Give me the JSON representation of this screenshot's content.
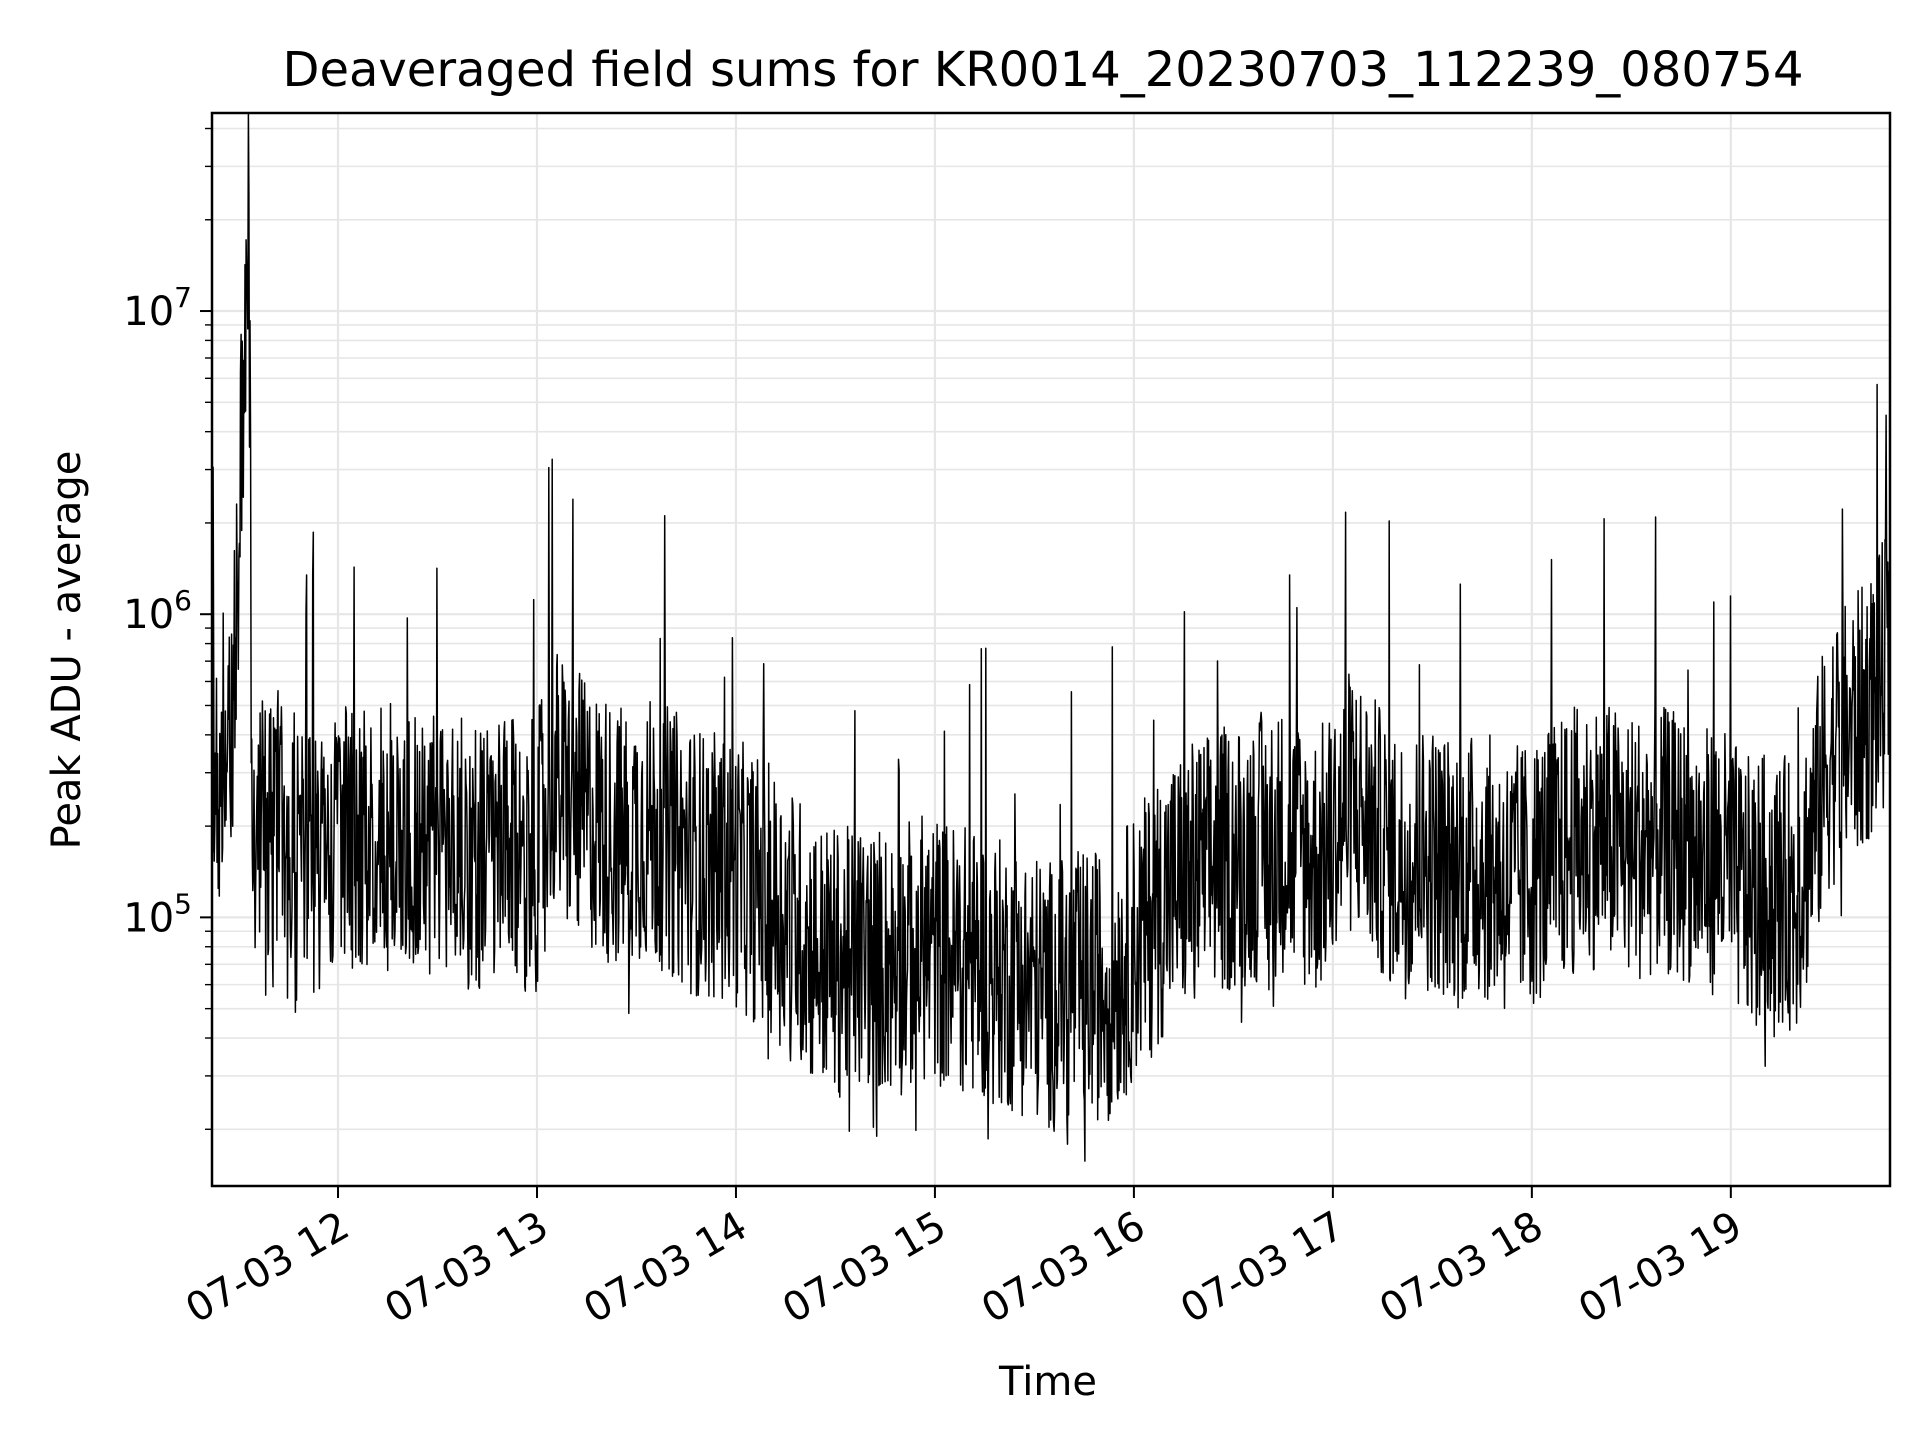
{
  "chart_data": {
    "type": "line",
    "title": "Deaveraged field sums for KR0014_20230703_112239_080754",
    "xlabel": "Time",
    "ylabel": "Peak ADU - average",
    "x_range": [
      "2023-07-03 11:22",
      "2023-07-03 19:48"
    ],
    "xlim": [
      "2023-07-03 11:22",
      "2023-07-03 19:48"
    ],
    "x_ticks": [
      {
        "date": "2023-07-03 12:00",
        "label": "07-03 12"
      },
      {
        "date": "2023-07-03 13:00",
        "label": "07-03 13"
      },
      {
        "date": "2023-07-03 14:00",
        "label": "07-03 14"
      },
      {
        "date": "2023-07-03 15:00",
        "label": "07-03 15"
      },
      {
        "date": "2023-07-03 16:00",
        "label": "07-03 16"
      },
      {
        "date": "2023-07-03 17:00",
        "label": "07-03 17"
      },
      {
        "date": "2023-07-03 18:00",
        "label": "07-03 18"
      },
      {
        "date": "2023-07-03 19:00",
        "label": "07-03 19"
      }
    ],
    "y_scale": "log",
    "ylim": [
      13000,
      45000000
    ],
    "y_ticks": [
      {
        "value": 100000,
        "base": "10",
        "exp": "5"
      },
      {
        "value": 1000000,
        "base": "10",
        "exp": "6"
      },
      {
        "value": 10000000,
        "base": "10",
        "exp": "7"
      }
    ],
    "grid": true,
    "line_color": "#000000",
    "series": [
      {
        "x": [
          "2023-07-03 11:22",
          "2023-07-03 11:25",
          "2023-07-03 11:28",
          "2023-07-03 11:32",
          "2023-07-03 11:33",
          "2023-07-03 11:34",
          "2023-07-03 11:35",
          "2023-07-03 11:38",
          "2023-07-03 11:42",
          "2023-07-03 11:48",
          "2023-07-03 11:53",
          "2023-07-03 11:57",
          "2023-07-03 11:59",
          "2023-07-03 12:06",
          "2023-07-03 12:10",
          "2023-07-03 12:20",
          "2023-07-03 12:26",
          "2023-07-03 12:31",
          "2023-07-03 12:40",
          "2023-07-03 12:50",
          "2023-07-03 13:00",
          "2023-07-03 13:04",
          "2023-07-03 13:10",
          "2023-07-03 13:20",
          "2023-07-03 13:26",
          "2023-07-03 13:31",
          "2023-07-03 13:40",
          "2023-07-03 13:45",
          "2023-07-03 13:50",
          "2023-07-03 14:00",
          "2023-07-03 14:08",
          "2023-07-03 14:16",
          "2023-07-03 14:25",
          "2023-07-03 14:32",
          "2023-07-03 14:40",
          "2023-07-03 14:48",
          "2023-07-03 14:56",
          "2023-07-03 15:05",
          "2023-07-03 15:14",
          "2023-07-03 15:20",
          "2023-07-03 15:29",
          "2023-07-03 15:36",
          "2023-07-03 15:45",
          "2023-07-03 15:50",
          "2023-07-03 15:55",
          "2023-07-03 16:00",
          "2023-07-03 16:05",
          "2023-07-03 16:10",
          "2023-07-03 16:18",
          "2023-07-03 16:25",
          "2023-07-03 16:37",
          "2023-07-03 16:45",
          "2023-07-03 16:55",
          "2023-07-03 16:59",
          "2023-07-03 17:06",
          "2023-07-03 17:14",
          "2023-07-03 17:20",
          "2023-07-03 17:30",
          "2023-07-03 17:37",
          "2023-07-03 17:45",
          "2023-07-03 17:52",
          "2023-07-03 18:00",
          "2023-07-03 18:08",
          "2023-07-03 18:13",
          "2023-07-03 18:20",
          "2023-07-03 18:30",
          "2023-07-03 18:37",
          "2023-07-03 18:45",
          "2023-07-03 18:52",
          "2023-07-03 18:56",
          "2023-07-03 19:05",
          "2023-07-03 19:12",
          "2023-07-03 19:20",
          "2023-07-03 19:25",
          "2023-07-03 19:30",
          "2023-07-03 19:40",
          "2023-07-03 19:48"
        ],
        "values": [
          250000,
          350000,
          450000,
          7000000,
          32000000,
          350000,
          200000,
          180000,
          200000,
          180000,
          150000,
          170000,
          160000,
          200000,
          180000,
          190000,
          170000,
          180000,
          160000,
          160000,
          160000,
          300000,
          240000,
          200000,
          180000,
          200000,
          180000,
          160000,
          150000,
          140000,
          120000,
          100000,
          75000,
          70000,
          75000,
          70000,
          80000,
          75000,
          70000,
          65000,
          60000,
          55000,
          60000,
          60000,
          65000,
          80000,
          95000,
          120000,
          140000,
          150000,
          170000,
          180000,
          150000,
          170000,
          250000,
          180000,
          150000,
          160000,
          140000,
          150000,
          130000,
          140000,
          160000,
          180000,
          190000,
          170000,
          180000,
          170000,
          150000,
          160000,
          120000,
          130000,
          115000,
          200000,
          350000,
          450000,
          700000
        ]
      }
    ]
  }
}
